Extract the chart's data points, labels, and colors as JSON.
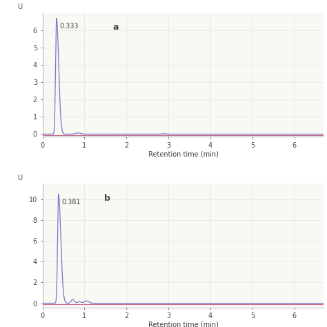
{
  "panel_a": {
    "label": "a",
    "peak_rt": 0.333,
    "peak_height": 6.7,
    "peak_annotation": "0.333",
    "secondary_peak_rt": 0.85,
    "secondary_peak_height": 0.07,
    "small_bump_rt": 2.88,
    "small_bump_height": 0.025,
    "ylim": [
      -0.15,
      7.0
    ],
    "yticks": [
      0.0,
      1.0,
      2.0,
      3.0,
      4.0,
      5.0,
      6.0
    ],
    "yticklabels": [
      "0",
      "1",
      "2",
      "3",
      "4",
      "5",
      "6"
    ],
    "ylabel": "U",
    "xlabel": "Retention time (min)"
  },
  "panel_b": {
    "label": "b",
    "peak_rt": 0.381,
    "peak_height": 10.5,
    "peak_annotation": "0.381",
    "secondary_peak_rt": 0.72,
    "secondary_peak_height": 0.35,
    "third_peak_rt": 1.05,
    "third_peak_height": 0.22,
    "fourth_peak_rt": 0.88,
    "fourth_peak_height": 0.15,
    "ylim": [
      -0.4,
      11.5
    ],
    "yticks": [
      0.0,
      2.0,
      4.0,
      6.0,
      8.0,
      10.0
    ],
    "yticklabels": [
      "0",
      "2",
      "4",
      "6",
      "8",
      "10"
    ],
    "ylabel": "U",
    "xlabel": "Retention time (min)"
  },
  "xmin": 0.0,
  "xmax": 6.7,
  "xticks": [
    0,
    1,
    2,
    3,
    4,
    5,
    6
  ],
  "xticklabels": [
    "0",
    "1",
    "2",
    "3",
    "4",
    "5",
    "6"
  ],
  "line_color_blue": "#7878cc",
  "line_color_pink": "#d06080",
  "background_color": "#ffffff",
  "plot_bg_color": "#f8f8f5",
  "grid_color": "#e0e0e0",
  "text_color": "#444444",
  "spine_color": "#aaaaaa",
  "font_size": 7,
  "label_font_size": 9,
  "annotation_font_size": 7
}
